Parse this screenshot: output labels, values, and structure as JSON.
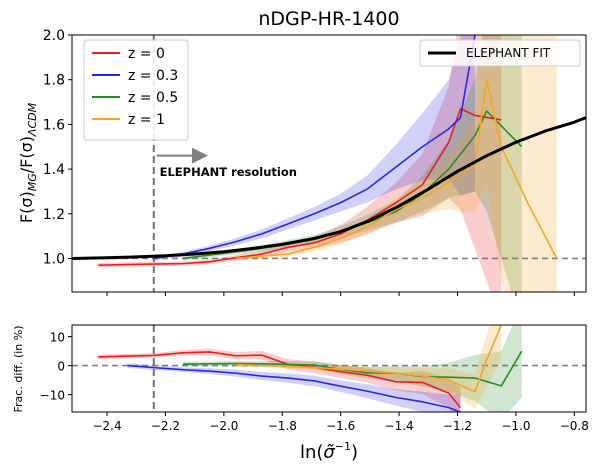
{
  "chart_data": [
    {
      "type": "line",
      "title": "nDGP-HR-1400",
      "ylabel": "F(σ)_MG/F(σ)_ΛCDM",
      "xlabel": "",
      "xlim": [
        -2.52,
        -0.76
      ],
      "ylim": [
        0.85,
        2.0
      ],
      "yticks": [
        1.0,
        1.2,
        1.4,
        1.6,
        1.8,
        2.0
      ],
      "ytick_labels": [
        "1.0",
        "1.2",
        "1.4",
        "1.6",
        "1.8",
        "2.0"
      ],
      "grid": false,
      "legend_position": "upper-left",
      "legend": [
        "z = 0",
        "z = 0.3",
        "z = 0.5",
        "z = 1"
      ],
      "legend2_position": "upper-right",
      "legend2": [
        "ELEPHANT FIT"
      ],
      "reference_line": {
        "y": 1.0,
        "style": "dashed"
      },
      "vline": {
        "x": -2.24,
        "style": "dashed"
      },
      "annotation": {
        "text": "ELEPHANT resolution",
        "x": -2.22,
        "y": 1.37
      },
      "arrow": {
        "x_from": -2.23,
        "x_to": -2.06,
        "y": 1.46
      },
      "series": [
        {
          "name": "z = 0",
          "color": "#e8211f",
          "x": [
            -2.43,
            -2.33,
            -2.24,
            -2.14,
            -2.05,
            -1.96,
            -1.87,
            -1.78,
            -1.69,
            -1.6,
            -1.51,
            -1.41,
            -1.32,
            -1.23,
            -1.19,
            -1.14,
            -1.05
          ],
          "y": [
            0.97,
            0.973,
            0.975,
            0.977,
            0.985,
            1.003,
            1.02,
            1.05,
            1.07,
            1.11,
            1.17,
            1.25,
            1.33,
            1.52,
            1.67,
            1.64,
            1.62
          ],
          "band": [
            0.01,
            0.01,
            0.01,
            0.01,
            0.01,
            0.012,
            0.015,
            0.02,
            0.025,
            0.04,
            0.06,
            0.09,
            0.14,
            0.25,
            0.45,
            0.6,
            0.9
          ]
        },
        {
          "name": "z = 0.3",
          "color": "#2929e4",
          "x": [
            -2.24,
            -2.14,
            -2.05,
            -1.96,
            -1.87,
            -1.78,
            -1.69,
            -1.6,
            -1.51,
            -1.41,
            -1.32,
            -1.23,
            -1.19,
            -1.14
          ],
          "y": [
            1.0,
            1.02,
            1.045,
            1.075,
            1.11,
            1.155,
            1.2,
            1.25,
            1.31,
            1.41,
            1.5,
            1.58,
            1.63,
            2.0
          ],
          "band": [
            0.01,
            0.01,
            0.012,
            0.015,
            0.02,
            0.025,
            0.03,
            0.04,
            0.06,
            0.1,
            0.15,
            0.22,
            0.35,
            0.7
          ]
        },
        {
          "name": "z = 0.5",
          "color": "#2a8b2a",
          "x": [
            -2.14,
            -2.05,
            -1.96,
            -1.87,
            -1.78,
            -1.69,
            -1.6,
            -1.51,
            -1.41,
            -1.32,
            -1.23,
            -1.14,
            -1.1,
            -0.98
          ],
          "y": [
            1.0,
            1.015,
            1.03,
            1.045,
            1.065,
            1.085,
            1.12,
            1.16,
            1.21,
            1.29,
            1.4,
            1.55,
            1.66,
            1.5
          ],
          "band": [
            0.01,
            0.01,
            0.012,
            0.015,
            0.018,
            0.02,
            0.025,
            0.035,
            0.05,
            0.08,
            0.13,
            0.25,
            0.45,
            0.8
          ]
        },
        {
          "name": "z = 1",
          "color": "#f5a623",
          "x": [
            -1.96,
            -1.87,
            -1.78,
            -1.69,
            -1.6,
            -1.51,
            -1.41,
            -1.32,
            -1.23,
            -1.14,
            -1.1,
            -1.05,
            -0.96,
            -0.86
          ],
          "y": [
            1.0,
            1.01,
            1.02,
            1.05,
            1.09,
            1.14,
            1.22,
            1.27,
            1.34,
            1.42,
            1.8,
            1.5,
            1.25,
            1.0
          ],
          "band": [
            0.01,
            0.01,
            0.012,
            0.02,
            0.025,
            0.035,
            0.05,
            0.07,
            0.12,
            0.22,
            0.45,
            0.6,
            0.8,
            1.0
          ]
        },
        {
          "name": "ELEPHANT FIT",
          "color": "#000000",
          "fit": true,
          "x": [
            -2.52,
            -2.4,
            -2.3,
            -2.2,
            -2.1,
            -2.0,
            -1.9,
            -1.8,
            -1.7,
            -1.6,
            -1.5,
            -1.4,
            -1.3,
            -1.2,
            -1.1,
            -1.0,
            -0.9,
            -0.8,
            -0.76
          ],
          "y": [
            1.0,
            1.003,
            1.007,
            1.012,
            1.02,
            1.03,
            1.045,
            1.063,
            1.087,
            1.12,
            1.17,
            1.235,
            1.31,
            1.39,
            1.46,
            1.52,
            1.57,
            1.61,
            1.63
          ]
        }
      ]
    },
    {
      "type": "line",
      "ylabel": "Frac. diff. (in %)",
      "xlabel": "ln(σ̃⁻¹)",
      "xlim": [
        -2.52,
        -0.76
      ],
      "ylim": [
        -16,
        14
      ],
      "xticks": [
        -2.4,
        -2.2,
        -2.0,
        -1.8,
        -1.6,
        -1.4,
        -1.2,
        -1.0,
        -0.8
      ],
      "xtick_labels": [
        "−2.4",
        "−2.2",
        "−2.0",
        "−1.8",
        "−1.6",
        "−1.4",
        "−1.2",
        "−1.0",
        "−0.8"
      ],
      "yticks": [
        -10,
        0,
        10
      ],
      "ytick_labels": [
        "−10",
        "0",
        "10"
      ],
      "grid": false,
      "reference_line": {
        "y": 0,
        "style": "dashed"
      },
      "vline": {
        "x": -2.24,
        "style": "dashed"
      },
      "series": [
        {
          "name": "z = 0",
          "color": "#e8211f",
          "x": [
            -2.43,
            -2.33,
            -2.24,
            -2.14,
            -2.05,
            -1.96,
            -1.87,
            -1.78,
            -1.69,
            -1.6,
            -1.51,
            -1.41,
            -1.32,
            -1.23,
            -1.19
          ],
          "y": [
            3.0,
            3.3,
            3.5,
            4.4,
            4.7,
            3.4,
            3.6,
            0.4,
            -0.6,
            -2.1,
            -3.3,
            -5.6,
            -5.8,
            -9.5,
            -14.5
          ],
          "band": [
            0.8,
            0.8,
            0.8,
            1.0,
            1.2,
            1.2,
            1.5,
            1.8,
            2.0,
            2.2,
            2.5,
            3.0,
            4.0,
            5.0,
            7.0
          ]
        },
        {
          "name": "z = 0.3",
          "color": "#2929e4",
          "x": [
            -2.33,
            -2.24,
            -2.14,
            -2.05,
            -1.96,
            -1.87,
            -1.78,
            -1.69,
            -1.6,
            -1.51,
            -1.41,
            -1.32,
            -1.23,
            -1.19
          ],
          "y": [
            0,
            -0.7,
            -1.4,
            -1.9,
            -2.6,
            -3.6,
            -4.3,
            -5.3,
            -7.1,
            -8.8,
            -11.0,
            -12.5,
            -14.5,
            -16
          ],
          "band": [
            0.8,
            0.8,
            0.8,
            1.0,
            1.2,
            1.4,
            1.6,
            1.8,
            2.0,
            2.4,
            2.8,
            3.5,
            4.5,
            6.0
          ]
        },
        {
          "name": "z = 0.5",
          "color": "#2a8b2a",
          "x": [
            -2.14,
            -2.05,
            -1.96,
            -1.87,
            -1.78,
            -1.69,
            -1.6,
            -1.51,
            -1.41,
            -1.32,
            -1.23,
            -1.14,
            -1.05,
            -0.98
          ],
          "y": [
            0.5,
            0.6,
            0.7,
            0.6,
            0.4,
            0.2,
            -1.3,
            -2.5,
            -2.6,
            -3.8,
            -4.0,
            -4.3,
            -7.0,
            5.0
          ],
          "band": [
            0.8,
            0.8,
            0.9,
            1.0,
            1.1,
            1.3,
            1.6,
            2.0,
            2.5,
            3.5,
            5.0,
            8.0,
            12.0,
            16.0
          ]
        },
        {
          "name": "z = 1",
          "color": "#f5a623",
          "x": [
            -1.96,
            -1.87,
            -1.78,
            -1.69,
            -1.6,
            -1.51,
            -1.41,
            -1.32,
            -1.23,
            -1.14,
            -1.1,
            -1.05
          ],
          "y": [
            0.3,
            0.1,
            -0.2,
            -0.7,
            -1.2,
            -1.9,
            -2.6,
            -3.6,
            -5.0,
            -9.0,
            2.0,
            14.0
          ],
          "band": [
            0.8,
            0.8,
            0.9,
            1.0,
            1.2,
            1.5,
            2.0,
            2.8,
            4.0,
            6.0,
            9.0,
            12.0
          ]
        }
      ]
    }
  ]
}
